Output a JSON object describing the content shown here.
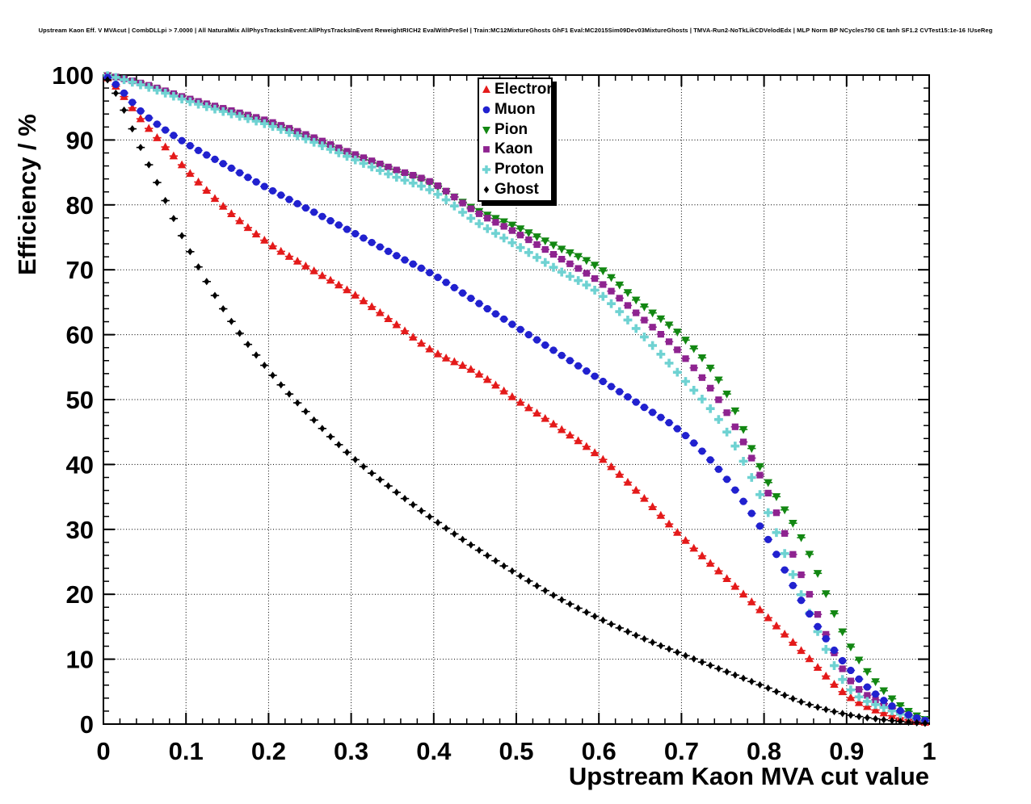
{
  "header": {
    "title": "Upstream Kaon Eff. V MVAcut | CombDLLpi > 7.0000 | All NaturalMix AllPhysTracksInEvent:AllPhysTracksInEvent ReweightRICH2 EvalWithPreSel | Train:MC12MixtureGhosts GhF1 Eval:MC2015Sim09Dev03MixtureGhosts | TMVA-Run2-NoTkLikCDVelodEdx | MLP Norm BP NCycles750 CE tanh SF1.2 CVTest15:1e-16 !UseReg"
  },
  "axes": {
    "x": {
      "label": "Upstream Kaon MVA cut value",
      "min": 0,
      "max": 1,
      "major_ticks": [
        0,
        0.1,
        0.2,
        0.3,
        0.4,
        0.5,
        0.6,
        0.7,
        0.8,
        0.9,
        1
      ],
      "tick_labels": [
        "0",
        "0.1",
        "0.2",
        "0.3",
        "0.4",
        "0.5",
        "0.6",
        "0.7",
        "0.8",
        "0.9",
        "1"
      ],
      "minor_step": 0.02
    },
    "y": {
      "label": "Efficiency / %",
      "min": 0,
      "max": 100,
      "major_ticks": [
        0,
        10,
        20,
        30,
        40,
        50,
        60,
        70,
        80,
        90,
        100
      ],
      "tick_labels": [
        "0",
        "10",
        "20",
        "30",
        "40",
        "50",
        "60",
        "70",
        "80",
        "90",
        "100"
      ],
      "minor_step": 2
    }
  },
  "legend": {
    "entries": [
      {
        "label": "Electron",
        "marker": "triangle-up",
        "color": "#e41a1a"
      },
      {
        "label": "Muon",
        "marker": "circle",
        "color": "#2121cf"
      },
      {
        "label": "Pion",
        "marker": "triangle-down",
        "color": "#128712"
      },
      {
        "label": "Kaon",
        "marker": "square",
        "color": "#8e2390"
      },
      {
        "label": "Proton",
        "marker": "cross",
        "color": "#6fd2d2"
      },
      {
        "label": "Ghost",
        "marker": "diamond",
        "color": "#000000"
      }
    ]
  },
  "chart_data": {
    "type": "scatter",
    "title": "Upstream Kaon Eff. V MVAcut",
    "xlabel": "Upstream Kaon MVA cut value",
    "ylabel": "Efficiency / %",
    "xlim": [
      0,
      1
    ],
    "ylim": [
      0,
      100
    ],
    "grid": "dotted",
    "marker_x_start": 0.005,
    "marker_x_step": 0.01,
    "x_error_half_width": 0.005,
    "x_control": [
      0,
      0.05,
      0.1,
      0.15,
      0.2,
      0.25,
      0.3,
      0.35,
      0.4,
      0.45,
      0.5,
      0.55,
      0.6,
      0.65,
      0.7,
      0.75,
      0.8,
      0.85,
      0.9,
      0.95,
      1.0
    ],
    "series": [
      {
        "name": "Electron",
        "marker": "triangle-up",
        "color": "#e41a1a",
        "values": [
          100,
          92.5,
          85.5,
          79.2,
          74.1,
          70.2,
          66.5,
          62,
          57.4,
          54.3,
          50,
          45.8,
          41.3,
          35.4,
          28.9,
          23,
          17,
          10.7,
          4.5,
          1.5,
          0.2
        ]
      },
      {
        "name": "Pion",
        "marker": "triangle-down",
        "color": "#128712",
        "values": [
          100,
          98.4,
          96.2,
          94.4,
          92.6,
          90.3,
          87.7,
          85.3,
          83.1,
          79.3,
          76.6,
          73.5,
          70.3,
          64.8,
          59.8,
          52,
          38.4,
          27.5,
          13,
          4.5,
          0.5
        ]
      },
      {
        "name": "Kaon",
        "marker": "square",
        "color": "#8e2390",
        "values": [
          100,
          98.6,
          96.5,
          94.7,
          92.9,
          90.6,
          88,
          85.6,
          83.3,
          79,
          75.7,
          72,
          68.2,
          62.8,
          57,
          49,
          37,
          21.5,
          7.5,
          2.8,
          0.4
        ]
      },
      {
        "name": "Proton",
        "marker": "cross",
        "color": "#6fd2d2",
        "values": [
          100,
          98.3,
          96.1,
          94.2,
          92.3,
          89.9,
          87.2,
          84.5,
          82,
          77.5,
          73.8,
          70,
          66.4,
          60.3,
          53.5,
          46,
          34,
          18.5,
          6,
          2.3,
          0.4
        ]
      },
      {
        "name": "Muon",
        "marker": "circle",
        "color": "#2121cf",
        "values": [
          100,
          93.9,
          89.5,
          86,
          82.5,
          79.2,
          75.9,
          72.5,
          69.2,
          65.2,
          61.2,
          57.2,
          53.2,
          49.2,
          45,
          38.5,
          29.5,
          18,
          9,
          3.2,
          0.4
        ]
      },
      {
        "name": "Ghost",
        "marker": "diamond",
        "color": "#000000",
        "values": [
          100,
          87.5,
          74,
          63,
          54.5,
          47.5,
          41.3,
          36.2,
          31.5,
          27.2,
          23.2,
          19.5,
          16.3,
          13.4,
          10.8,
          8.3,
          5.8,
          3.2,
          1.5,
          0.6,
          0.1
        ]
      }
    ]
  }
}
